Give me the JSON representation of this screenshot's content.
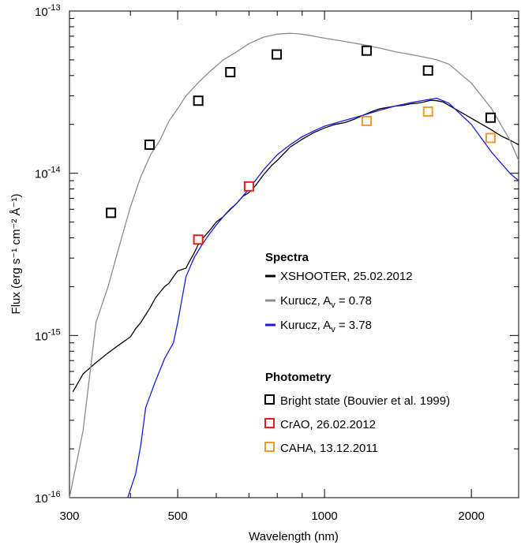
{
  "chart_data": {
    "type": "line",
    "xlabel": "Wavelength (nm)",
    "ylabel": "Flux (erg s⁻¹ cm⁻² Å⁻¹)",
    "x_scale": "log",
    "y_scale": "log",
    "xlim": [
      300,
      2500
    ],
    "ylim": [
      1e-16,
      1e-13
    ],
    "x_ticks": [
      {
        "value": 300,
        "label": "300"
      },
      {
        "value": 500,
        "label": "500"
      },
      {
        "value": 1000,
        "label": "1000"
      },
      {
        "value": 2000,
        "label": "2000"
      }
    ],
    "y_ticks": [
      {
        "value": 1e-16,
        "base": "10",
        "exp": "-16"
      },
      {
        "value": 1e-15,
        "base": "10",
        "exp": "-15"
      },
      {
        "value": 1e-14,
        "base": "10",
        "exp": "-14"
      },
      {
        "value": 1e-13,
        "base": "10",
        "exp": "-13"
      }
    ],
    "legend": {
      "spectra_title": "Spectra",
      "photometry_title": "Photometry",
      "placement": "center-right"
    },
    "series": [
      {
        "name": "XSHOOTER, 25.02.2012",
        "color": "#000000",
        "x": [
          305,
          320,
          340,
          360,
          380,
          400,
          410,
          420,
          440,
          450,
          470,
          480,
          490,
          500,
          520,
          530,
          540,
          550,
          560,
          580,
          600,
          620,
          640,
          660,
          680,
          700,
          720,
          750,
          780,
          800,
          850,
          900,
          950,
          1000,
          1050,
          1100,
          1150,
          1200,
          1250,
          1300,
          1350,
          1400,
          1450,
          1500,
          1550,
          1600,
          1650,
          1700,
          1750,
          2200,
          2300,
          2400,
          2500
        ],
        "y": [
          4.5e-16,
          5.8e-16,
          6.8e-16,
          7.8e-16,
          8.8e-16,
          9.8e-16,
          1.1e-15,
          1.2e-15,
          1.5e-15,
          1.7e-15,
          2e-15,
          2.1e-15,
          2.3e-15,
          2.5e-15,
          2.6e-15,
          2.9e-15,
          3.2e-15,
          3.6e-15,
          3.9e-15,
          4.4e-15,
          5e-15,
          5.4e-15,
          6e-15,
          6.5e-15,
          7.2e-15,
          7.6e-15,
          8.3e-15,
          9.8e-15,
          1.12e-14,
          1.2e-14,
          1.45e-14,
          1.62e-14,
          1.78e-14,
          1.9e-14,
          2e-14,
          2.05e-14,
          2.15e-14,
          2.28e-14,
          2.4e-14,
          2.5e-14,
          2.55e-14,
          2.6e-14,
          2.62e-14,
          2.68e-14,
          2.7e-14,
          2.75e-14,
          2.82e-14,
          2.8e-14,
          2.75e-14,
          1.85e-14,
          1.7e-14,
          1.6e-14,
          1.5e-14
        ]
      },
      {
        "name": "Kurucz, A",
        "name_sub": "v",
        "name_suffix": " = 0.78",
        "color": "#8c8c8c",
        "x": [
          300,
          320,
          340,
          360,
          380,
          400,
          420,
          440,
          460,
          480,
          500,
          520,
          550,
          580,
          620,
          660,
          700,
          750,
          800,
          850,
          900,
          950,
          1000,
          1100,
          1200,
          1300,
          1400,
          1500,
          1600,
          1700,
          1800,
          2000,
          2200,
          2400,
          2500
        ],
        "y": [
          1e-16,
          2.6e-16,
          1.2e-15,
          2e-15,
          3.6e-15,
          6.2e-15,
          9.5e-15,
          1.3e-14,
          1.6e-14,
          2.1e-14,
          2.5e-14,
          3e-14,
          3.6e-14,
          4.2e-14,
          5e-14,
          5.6e-14,
          6.3e-14,
          6.9e-14,
          7.2e-14,
          7.3e-14,
          7.2e-14,
          7e-14,
          6.8e-14,
          6.5e-14,
          6.2e-14,
          5.9e-14,
          5.6e-14,
          5.4e-14,
          5.2e-14,
          5e-14,
          4.7e-14,
          3.6e-14,
          2.5e-14,
          1.6e-14,
          1.2e-14
        ]
      },
      {
        "name": "Kurucz, A",
        "name_sub": "v",
        "name_suffix": " = 3.78",
        "color": "#1a1ae6",
        "x": [
          395,
          410,
          420,
          430,
          450,
          470,
          490,
          500,
          520,
          540,
          560,
          580,
          600,
          620,
          660,
          700,
          750,
          800,
          850,
          900,
          950,
          1000,
          1100,
          1200,
          1300,
          1400,
          1500,
          1600,
          1700,
          1800,
          2000,
          2200,
          2400,
          2500
        ],
        "y": [
          1e-16,
          1.4e-16,
          2.1e-16,
          3.6e-16,
          5.2e-16,
          7.2e-16,
          9e-16,
          1.2e-15,
          2.3e-15,
          3e-15,
          3.6e-15,
          4.2e-15,
          4.8e-15,
          5.4e-15,
          6.5e-15,
          8e-15,
          1.05e-14,
          1.3e-14,
          1.5e-14,
          1.68e-14,
          1.82e-14,
          1.95e-14,
          2.12e-14,
          2.28e-14,
          2.45e-14,
          2.6e-14,
          2.72e-14,
          2.82e-14,
          2.9e-14,
          2.7e-14,
          2e-14,
          1.35e-14,
          1e-14,
          9e-15
        ]
      }
    ],
    "photometry": [
      {
        "name": "Bright state (Bouvier et al. 1999)",
        "color": "#000000",
        "points": [
          {
            "x": 365,
            "y": 5.7e-15
          },
          {
            "x": 438,
            "y": 1.5e-14
          },
          {
            "x": 551,
            "y": 2.8e-14
          },
          {
            "x": 641,
            "y": 4.2e-14
          },
          {
            "x": 798,
            "y": 5.4e-14
          },
          {
            "x": 1220,
            "y": 5.7e-14
          },
          {
            "x": 1630,
            "y": 4.3e-14
          },
          {
            "x": 2190,
            "y": 2.2e-14
          }
        ]
      },
      {
        "name": "CrAO, 26.02.2012",
        "color": "#e01e1e",
        "points": [
          {
            "x": 551,
            "y": 3.9e-15
          },
          {
            "x": 700,
            "y": 8.3e-15
          }
        ]
      },
      {
        "name": "CAHA, 13.12.2011",
        "color": "#f39a2e",
        "points": [
          {
            "x": 1220,
            "y": 2.1e-14
          },
          {
            "x": 1630,
            "y": 2.4e-14
          },
          {
            "x": 2190,
            "y": 1.65e-14
          }
        ]
      }
    ]
  }
}
